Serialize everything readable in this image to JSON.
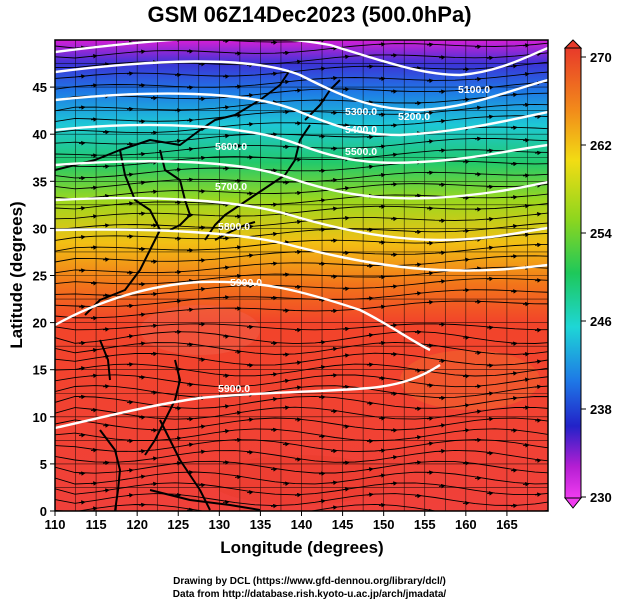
{
  "title": "GSM 06Z14Dec2023 (500.0hPa)",
  "x_axis_label": "Longitude (degrees)",
  "y_axis_label": "Latitude  (degrees)",
  "lon_ticks": [
    "110",
    "115",
    "120",
    "125",
    "130",
    "135",
    "140",
    "145",
    "150",
    "155",
    "160",
    "165"
  ],
  "lat_ticks": [
    "0",
    "5",
    "10",
    "15",
    "20",
    "25",
    "30",
    "35",
    "40",
    "45"
  ],
  "colorbar_ticks": [
    "270",
    "262",
    "254",
    "246",
    "238",
    "230"
  ],
  "contour_labels": [
    "5100.0",
    "5200.0",
    "5300.0",
    "5400.0",
    "5500.0",
    "5600.0",
    "5700.0",
    "5800.0",
    "5900.0",
    "5900.0"
  ],
  "credits": {
    "line1": "Drawing by DCL (https://www.gfd-dennou.org/library/dcl/)",
    "line2": "Data from http://database.rish.kyoto-u.ac.jp/arch/jmadata/"
  }
}
